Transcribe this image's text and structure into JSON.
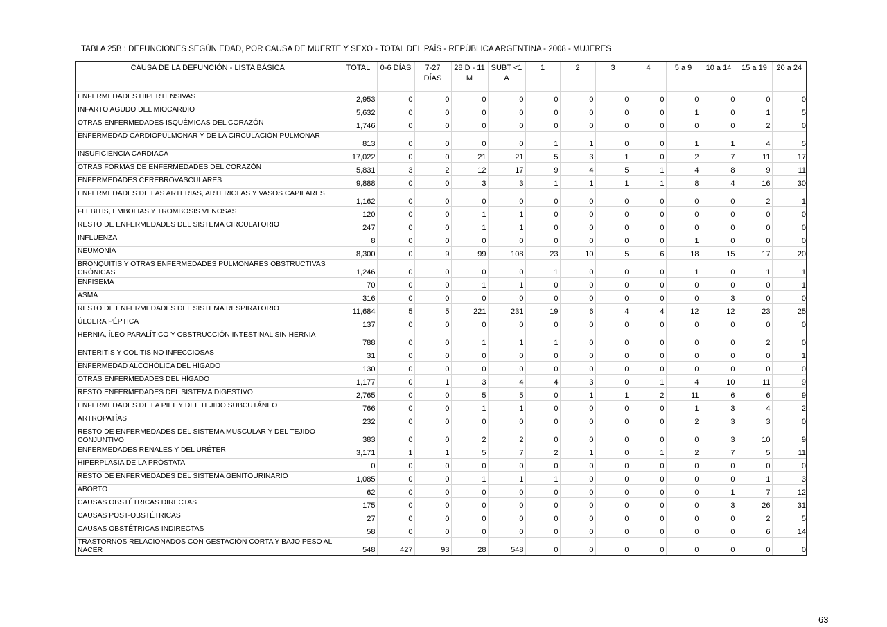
{
  "title": "TABLA 25B : DEFUNCIONES SEGÚN EDAD, POR CAUSA DE MUERTE Y SEXO - TOTAL DEL PAÍS - REPÚBLICA ARGENTINA - 2008 - MUJERES",
  "page_number": "63",
  "columns": [
    "CAUSA DE LA DEFUNCIÓN - LISTA BÁSICA",
    "TOTAL",
    "0-6 DÍAS",
    "7-27 DÍAS",
    "28 D - 11 M",
    "SUBT <1 A",
    "1",
    "2",
    "3",
    "4",
    "5 a 9",
    "10 a 14",
    "15 a 19",
    "20 a 24"
  ],
  "rows": [
    {
      "cause": "ENFERMEDADES HIPERTENSIVAS",
      "values": [
        "2,953",
        "0",
        "0",
        "0",
        "0",
        "0",
        "0",
        "0",
        "0",
        "0",
        "0",
        "0",
        "0"
      ]
    },
    {
      "cause": "INFARTO AGUDO DEL MIOCARDIO",
      "values": [
        "5,632",
        "0",
        "0",
        "0",
        "0",
        "0",
        "0",
        "0",
        "0",
        "1",
        "0",
        "1",
        "5"
      ]
    },
    {
      "cause": "OTRAS ENFERMEDADES ISQUÉMICAS DEL CORAZÓN",
      "values": [
        "1,746",
        "0",
        "0",
        "0",
        "0",
        "0",
        "0",
        "0",
        "0",
        "0",
        "0",
        "2",
        "0"
      ]
    },
    {
      "cause": "ENFERMEDAD CARDIOPULMONAR Y DE LA CIRCULACIÓN PULMONAR",
      "tall": true,
      "values": [
        "813",
        "0",
        "0",
        "0",
        "0",
        "1",
        "1",
        "0",
        "0",
        "1",
        "1",
        "4",
        "5"
      ]
    },
    {
      "cause": "INSUFICIENCIA CARDIACA",
      "values": [
        "17,022",
        "0",
        "0",
        "21",
        "21",
        "5",
        "3",
        "1",
        "0",
        "2",
        "7",
        "11",
        "17"
      ]
    },
    {
      "cause": "OTRAS FORMAS DE ENFERMEDADES DEL CORAZÓN",
      "values": [
        "5,831",
        "3",
        "2",
        "12",
        "17",
        "9",
        "4",
        "5",
        "1",
        "4",
        "8",
        "9",
        "11"
      ]
    },
    {
      "cause": "ENFERMEDADES CEREBROVASCULARES",
      "values": [
        "9,888",
        "0",
        "0",
        "3",
        "3",
        "1",
        "1",
        "1",
        "1",
        "8",
        "4",
        "16",
        "30"
      ]
    },
    {
      "cause": "ENFERMEDADES DE LAS ARTERIAS, ARTERIOLAS Y VASOS CAPILARES",
      "tall": true,
      "values": [
        "1,162",
        "0",
        "0",
        "0",
        "0",
        "0",
        "0",
        "0",
        "0",
        "0",
        "0",
        "2",
        "1"
      ]
    },
    {
      "cause": "FLEBITIS, EMBOLIAS Y TROMBOSIS VENOSAS",
      "values": [
        "120",
        "0",
        "0",
        "1",
        "1",
        "0",
        "0",
        "0",
        "0",
        "0",
        "0",
        "0",
        "0"
      ]
    },
    {
      "cause": "RESTO DE ENFERMEDADES DEL SISTEMA CIRCULATORIO",
      "values": [
        "247",
        "0",
        "0",
        "1",
        "1",
        "0",
        "0",
        "0",
        "0",
        "0",
        "0",
        "0",
        "0"
      ]
    },
    {
      "cause": "INFLUENZA",
      "values": [
        "8",
        "0",
        "0",
        "0",
        "0",
        "0",
        "0",
        "0",
        "0",
        "1",
        "0",
        "0",
        "0"
      ]
    },
    {
      "cause": "NEUMONÍA",
      "values": [
        "8,300",
        "0",
        "9",
        "99",
        "108",
        "23",
        "10",
        "5",
        "6",
        "18",
        "15",
        "17",
        "20"
      ]
    },
    {
      "cause": "BRONQUITIS Y OTRAS ENFERMEDADES PULMONARES OBSTRUCTIVAS CRÓNICAS",
      "tall": true,
      "values": [
        "1,246",
        "0",
        "0",
        "0",
        "0",
        "1",
        "0",
        "0",
        "0",
        "1",
        "0",
        "1",
        "1"
      ]
    },
    {
      "cause": "ENFISEMA",
      "values": [
        "70",
        "0",
        "0",
        "1",
        "1",
        "0",
        "0",
        "0",
        "0",
        "0",
        "0",
        "0",
        "1"
      ]
    },
    {
      "cause": "ASMA",
      "values": [
        "316",
        "0",
        "0",
        "0",
        "0",
        "0",
        "0",
        "0",
        "0",
        "0",
        "3",
        "0",
        "0"
      ]
    },
    {
      "cause": "RESTO DE ENFERMEDADES DEL SISTEMA RESPIRATORIO",
      "values": [
        "11,684",
        "5",
        "5",
        "221",
        "231",
        "19",
        "6",
        "4",
        "4",
        "12",
        "12",
        "23",
        "25"
      ]
    },
    {
      "cause": "ÚLCERA PÉPTICA",
      "values": [
        "137",
        "0",
        "0",
        "0",
        "0",
        "0",
        "0",
        "0",
        "0",
        "0",
        "0",
        "0",
        "0"
      ]
    },
    {
      "cause": "HERNIA, ÍLEO PARALÍTICO Y OBSTRUCCIÓN INTESTINAL SIN HERNIA",
      "tall": true,
      "values": [
        "788",
        "0",
        "0",
        "1",
        "1",
        "1",
        "0",
        "0",
        "0",
        "0",
        "0",
        "2",
        "0"
      ]
    },
    {
      "cause": "ENTERITIS Y COLITIS NO INFECCIOSAS",
      "values": [
        "31",
        "0",
        "0",
        "0",
        "0",
        "0",
        "0",
        "0",
        "0",
        "0",
        "0",
        "0",
        "1"
      ]
    },
    {
      "cause": "ENFERMEDAD ALCOHÓLICA DEL HÍGADO",
      "values": [
        "130",
        "0",
        "0",
        "0",
        "0",
        "0",
        "0",
        "0",
        "0",
        "0",
        "0",
        "0",
        "0"
      ]
    },
    {
      "cause": "OTRAS ENFERMEDADES DEL HÍGADO",
      "values": [
        "1,177",
        "0",
        "1",
        "3",
        "4",
        "4",
        "3",
        "0",
        "1",
        "4",
        "10",
        "11",
        "9"
      ]
    },
    {
      "cause": "RESTO ENFERMEDADES DEL SISTEMA DIGESTIVO",
      "values": [
        "2,765",
        "0",
        "0",
        "5",
        "5",
        "0",
        "1",
        "1",
        "2",
        "11",
        "6",
        "6",
        "9"
      ]
    },
    {
      "cause": "ENFERMEDADES DE LA PIEL Y DEL TEJIDO SUBCUTÁNEO",
      "values": [
        "766",
        "0",
        "0",
        "1",
        "1",
        "0",
        "0",
        "0",
        "0",
        "1",
        "3",
        "4",
        "2"
      ]
    },
    {
      "cause": "ARTROPATÍAS",
      "values": [
        "232",
        "0",
        "0",
        "0",
        "0",
        "0",
        "0",
        "0",
        "0",
        "2",
        "3",
        "3",
        "0"
      ]
    },
    {
      "cause": "RESTO DE ENFERMEDADES DEL SISTEMA MUSCULAR Y DEL TEJIDO CONJUNTIVO",
      "tall": true,
      "values": [
        "383",
        "0",
        "0",
        "2",
        "2",
        "0",
        "0",
        "0",
        "0",
        "0",
        "3",
        "10",
        "9"
      ]
    },
    {
      "cause": "ENFERMEDADES RENALES Y DEL URÉTER",
      "values": [
        "3,171",
        "1",
        "1",
        "5",
        "7",
        "2",
        "1",
        "0",
        "1",
        "2",
        "7",
        "5",
        "11"
      ]
    },
    {
      "cause": "HIPERPLASIA DE LA PRÓSTATA",
      "values": [
        "0",
        "0",
        "0",
        "0",
        "0",
        "0",
        "0",
        "0",
        "0",
        "0",
        "0",
        "0",
        "0"
      ]
    },
    {
      "cause": "RESTO DE ENFERMEDADES DEL SISTEMA GENITOURINARIO",
      "values": [
        "1,085",
        "0",
        "0",
        "1",
        "1",
        "1",
        "0",
        "0",
        "0",
        "0",
        "0",
        "1",
        "3"
      ]
    },
    {
      "cause": "ABORTO",
      "values": [
        "62",
        "0",
        "0",
        "0",
        "0",
        "0",
        "0",
        "0",
        "0",
        "0",
        "1",
        "7",
        "12"
      ]
    },
    {
      "cause": "CAUSAS OBSTÉTRICAS DIRECTAS",
      "values": [
        "175",
        "0",
        "0",
        "0",
        "0",
        "0",
        "0",
        "0",
        "0",
        "0",
        "3",
        "26",
        "31"
      ]
    },
    {
      "cause": "CAUSAS POST-OBSTÉTRICAS",
      "values": [
        "27",
        "0",
        "0",
        "0",
        "0",
        "0",
        "0",
        "0",
        "0",
        "0",
        "0",
        "2",
        "5"
      ]
    },
    {
      "cause": "CAUSAS OBSTÉTRICAS INDIRECTAS",
      "values": [
        "58",
        "0",
        "0",
        "0",
        "0",
        "0",
        "0",
        "0",
        "0",
        "0",
        "0",
        "6",
        "14"
      ]
    },
    {
      "cause": "TRASTORNOS RELACIONADOS CON GESTACIÓN CORTA Y BAJO PESO AL NACER",
      "tall": true,
      "values": [
        "548",
        "427",
        "93",
        "28",
        "548",
        "0",
        "0",
        "0",
        "0",
        "0",
        "0",
        "0",
        "0"
      ]
    }
  ]
}
